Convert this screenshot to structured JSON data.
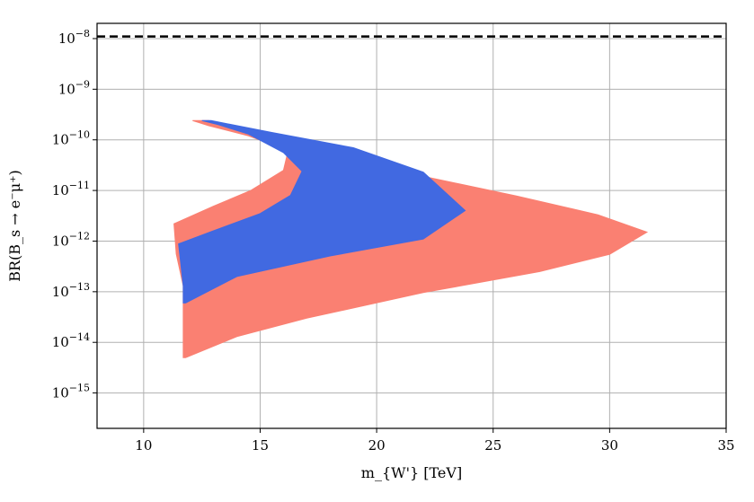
{
  "chart_data": {
    "type": "area",
    "title": "",
    "xlabel": "m_{W'} [TeV]",
    "ylabel": "BR(B_s → e⁻μ⁺)",
    "y_scale": "log",
    "xlim": [
      8,
      35
    ],
    "ylim": [
      2e-16,
      2e-08
    ],
    "grid": true,
    "x_ticks": [
      10,
      15,
      20,
      25,
      30,
      35
    ],
    "x_tick_labels": [
      "10",
      "15",
      "20",
      "25",
      "30",
      "35"
    ],
    "y_tick_exponents": [
      -15,
      -14,
      -13,
      -12,
      -11,
      -10,
      -9,
      -8
    ],
    "reference_line": {
      "y": 1.1e-08,
      "style": "dashed",
      "color": "#000000"
    },
    "series": [
      {
        "color": "#fa8072",
        "boundary": [
          {
            "x": 12.1,
            "y": 2.4e-10
          },
          {
            "x": 12.8,
            "y": 2.4e-10
          },
          {
            "x": 15.0,
            "y": 1.1e-10
          },
          {
            "x": 18.0,
            "y": 4.7e-11
          },
          {
            "x": 22.0,
            "y": 1.9e-11
          },
          {
            "x": 26.0,
            "y": 7.8e-12
          },
          {
            "x": 29.5,
            "y": 3.3e-12
          },
          {
            "x": 31.6,
            "y": 1.5e-12
          },
          {
            "x": 30.0,
            "y": 5.5e-13
          },
          {
            "x": 27.0,
            "y": 2.5e-13
          },
          {
            "x": 22.0,
            "y": 9.6e-14
          },
          {
            "x": 17.0,
            "y": 3e-14
          },
          {
            "x": 14.0,
            "y": 1.3e-14
          },
          {
            "x": 11.8,
            "y": 5e-15
          },
          {
            "x": 11.7,
            "y": 5e-15
          },
          {
            "x": 11.7,
            "y": 1.3e-13
          },
          {
            "x": 11.4,
            "y": 5.6e-13
          },
          {
            "x": 11.3,
            "y": 2.2e-12
          },
          {
            "x": 13.0,
            "y": 4.9e-12
          },
          {
            "x": 14.6,
            "y": 1e-11
          },
          {
            "x": 16.0,
            "y": 2.5e-11
          },
          {
            "x": 16.2,
            "y": 6.1e-11
          },
          {
            "x": 14.5,
            "y": 1.2e-10
          },
          {
            "x": 12.8,
            "y": 1.9e-10
          }
        ]
      },
      {
        "color": "#4169e1",
        "boundary": [
          {
            "x": 12.5,
            "y": 2.4e-10
          },
          {
            "x": 12.9,
            "y": 2.4e-10
          },
          {
            "x": 15.5,
            "y": 1.4e-10
          },
          {
            "x": 19.0,
            "y": 7e-11
          },
          {
            "x": 22.0,
            "y": 2.3e-11
          },
          {
            "x": 23.8,
            "y": 4e-12
          },
          {
            "x": 22.0,
            "y": 1.1e-12
          },
          {
            "x": 18.0,
            "y": 5.1e-13
          },
          {
            "x": 14.0,
            "y": 2e-13
          },
          {
            "x": 11.8,
            "y": 6e-14
          },
          {
            "x": 11.7,
            "y": 6e-14
          },
          {
            "x": 11.7,
            "y": 1.3e-13
          },
          {
            "x": 11.5,
            "y": 8.8e-13
          },
          {
            "x": 13.0,
            "y": 1.6e-12
          },
          {
            "x": 15.0,
            "y": 3.5e-12
          },
          {
            "x": 16.3,
            "y": 8e-12
          },
          {
            "x": 16.8,
            "y": 2.4e-11
          },
          {
            "x": 16.0,
            "y": 5.6e-11
          },
          {
            "x": 14.5,
            "y": 1.3e-10
          },
          {
            "x": 13.2,
            "y": 2e-10
          }
        ]
      }
    ]
  }
}
